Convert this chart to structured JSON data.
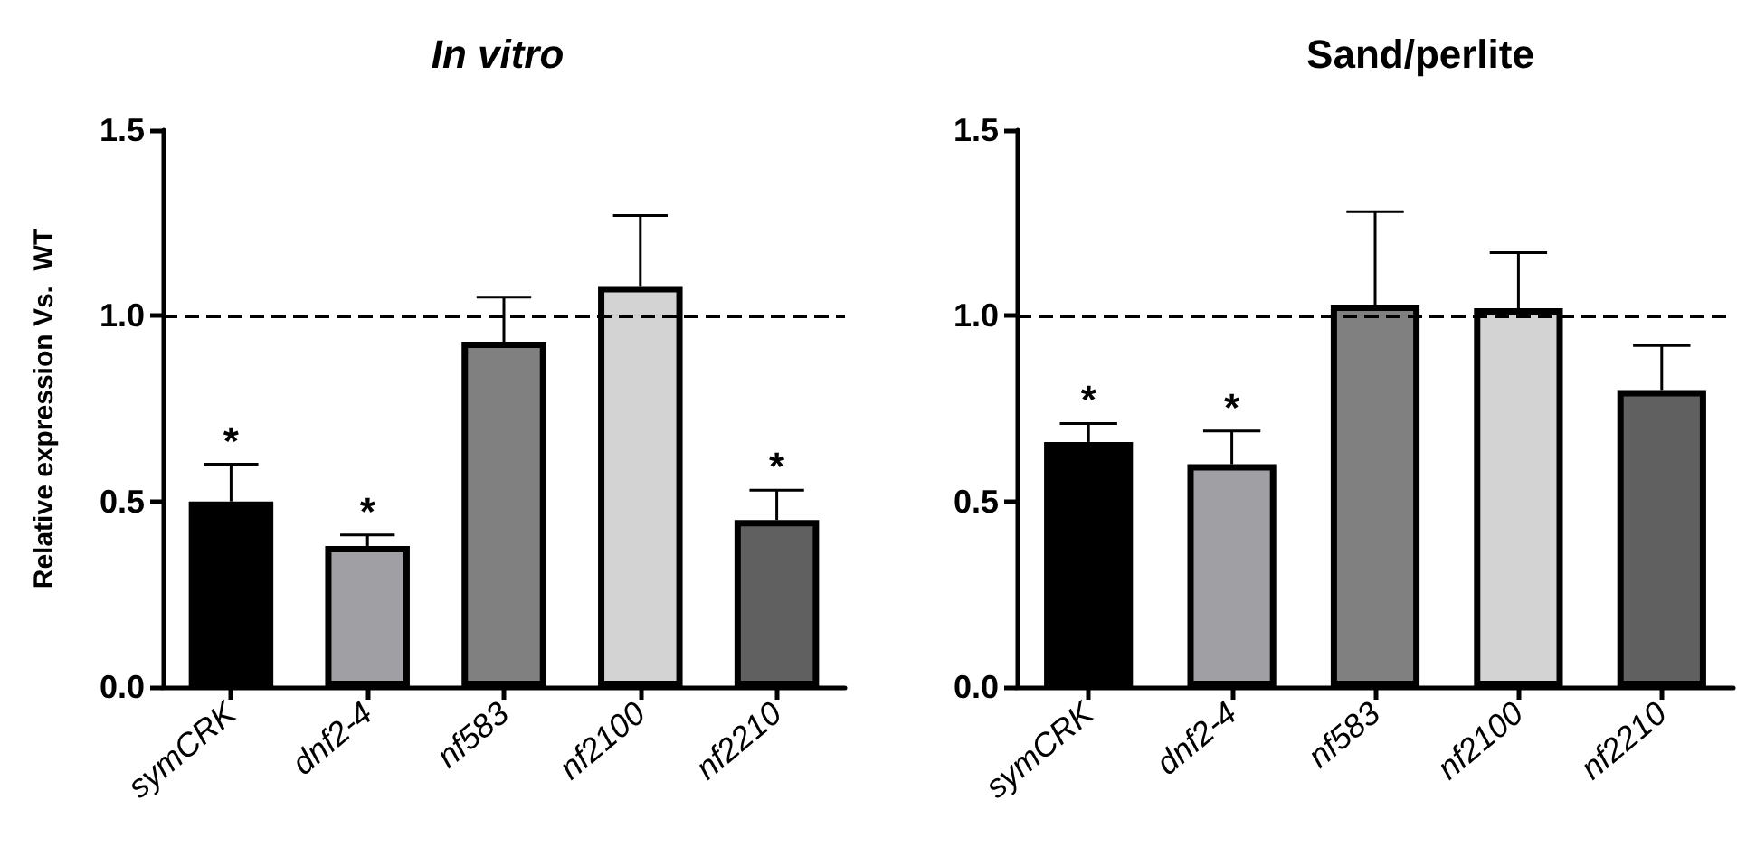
{
  "chart_data": [
    {
      "type": "bar",
      "title": "In vitro",
      "ylabel": "Relative expression Vs.  WT",
      "categories": [
        "symCRK",
        "dnf2-4",
        "nf583",
        "nf2100",
        "nf2210"
      ],
      "values": [
        0.5,
        0.38,
        0.93,
        1.08,
        0.45
      ],
      "colors": [
        "#000000",
        "#a0a0a4",
        "#808080",
        "#d3d3d3",
        "#606060"
      ],
      "errors": [
        [
          0.5,
          0.6
        ],
        [
          0.38,
          0.41
        ],
        [
          0.93,
          1.05
        ],
        [
          1.08,
          1.27
        ],
        [
          0.45,
          0.53
        ]
      ],
      "ylim": [
        0,
        1.5
      ],
      "yticks": [
        {
          "value": 0,
          "label": "0.0"
        },
        {
          "value": 0.5,
          "label": "0.5"
        },
        {
          "value": 1,
          "label": "1.0"
        },
        {
          "value": 1.5,
          "label": "1.5"
        }
      ],
      "ref_lines": [
        {
          "axis": "y",
          "value": 1,
          "line_style": "dashed",
          "color": "#000000"
        }
      ],
      "annotations": [
        {
          "text": "*",
          "x": "symCRK",
          "y": 0.6
        },
        {
          "text": "*",
          "x": "dnf2-4",
          "y": 0.41
        },
        {
          "text": "*",
          "x": "nf2210",
          "y": 0.53
        }
      ]
    },
    {
      "type": "bar",
      "title": "Sand/perlite",
      "categories": [
        "symCRK",
        "dnf2-4",
        "nf583",
        "nf2100",
        "nf2210"
      ],
      "values": [
        0.66,
        0.6,
        1.03,
        1.02,
        0.8
      ],
      "colors": [
        "#000000",
        "#a0a0a4",
        "#808080",
        "#d3d3d3",
        "#606060"
      ],
      "errors": [
        [
          0.66,
          0.71
        ],
        [
          0.6,
          0.69
        ],
        [
          1.03,
          1.28
        ],
        [
          1.02,
          1.17
        ],
        [
          0.8,
          0.92
        ]
      ],
      "ylim": [
        0,
        1.5
      ],
      "yticks": [
        {
          "value": 0,
          "label": "0.0"
        },
        {
          "value": 0.5,
          "label": "0.5"
        },
        {
          "value": 1,
          "label": "1.0"
        },
        {
          "value": 1.5,
          "label": "1.5"
        }
      ],
      "ref_lines": [
        {
          "axis": "y",
          "value": 1,
          "line_style": "dashed",
          "color": "#000000"
        }
      ],
      "annotations": [
        {
          "text": "*",
          "x": "symCRK",
          "y": 0.71
        },
        {
          "text": "*",
          "x": "dnf2-4",
          "y": 0.69
        }
      ]
    }
  ]
}
